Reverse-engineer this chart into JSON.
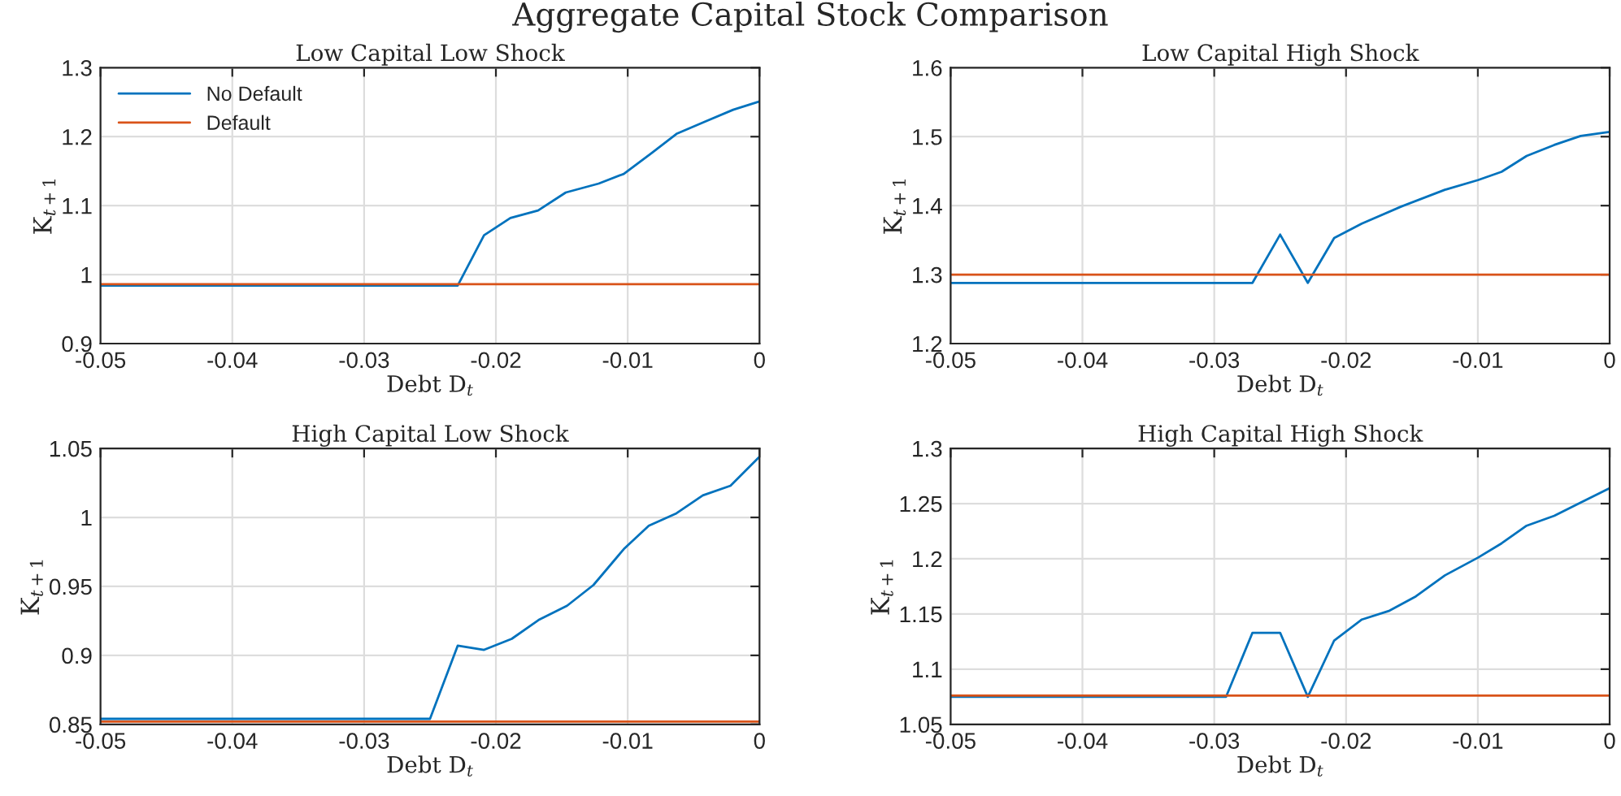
{
  "chart_data": [
    {
      "type": "line",
      "title": "Low Capital Low Shock",
      "xlabel": "Debt D$_{t}$",
      "ylabel": "K$_{t+1}$",
      "annotations": [
        "Aggregate Capital Stock Comparison"
      ],
      "xlim": [
        -0.05,
        0
      ],
      "xticks": [
        -0.05,
        -0.04,
        -0.03,
        -0.02,
        -0.01,
        0
      ],
      "ylim": [
        0.9,
        1.3
      ],
      "yticks": [
        0.9,
        1,
        1.1,
        1.2,
        1.3
      ],
      "grid": true,
      "legend": "top left",
      "series": [
        {
          "name": "No Default",
          "color": "#0072bd",
          "x": [
            -0.05,
            -0.0229,
            -0.0209,
            -0.0189,
            -0.0168,
            -0.0147,
            -0.0122,
            -0.0103,
            -0.0082,
            -0.0063,
            -0.0041,
            -0.002,
            0
          ],
          "values": [
            0.984,
            0.984,
            1.057,
            1.082,
            1.093,
            1.119,
            1.132,
            1.146,
            1.176,
            1.204,
            1.222,
            1.239,
            1.251
          ]
        },
        {
          "name": "Default",
          "color": "#d95319",
          "x": [
            -0.05,
            0
          ],
          "values": [
            0.986,
            0.986
          ]
        }
      ]
    },
    {
      "type": "line",
      "title": "Low Capital High Shock",
      "xlabel": "Debt D$_{t}$",
      "ylabel": "K$_{t+1}$",
      "xlim": [
        -0.05,
        0
      ],
      "xticks": [
        -0.05,
        -0.04,
        -0.03,
        -0.02,
        -0.01,
        0
      ],
      "ylim": [
        1.2,
        1.6
      ],
      "yticks": [
        1.2,
        1.3,
        1.4,
        1.5,
        1.6
      ],
      "grid": true,
      "series": [
        {
          "color": "#0072bd",
          "x": [
            -0.05,
            -0.0271,
            -0.025,
            -0.0229,
            -0.0209,
            -0.0188,
            -0.0159,
            -0.0125,
            -0.01,
            -0.0082,
            -0.0063,
            -0.0042,
            -0.0022,
            0
          ],
          "values": [
            1.288,
            1.288,
            1.358,
            1.288,
            1.353,
            1.374,
            1.398,
            1.423,
            1.437,
            1.449,
            1.472,
            1.488,
            1.501,
            1.507
          ]
        },
        {
          "color": "#d95319",
          "x": [
            -0.05,
            0
          ],
          "values": [
            1.3,
            1.3
          ]
        }
      ]
    },
    {
      "type": "line",
      "title": "High Capital Low Shock",
      "xlabel": "Debt D$_{t}$",
      "ylabel": "K$_{t+1}$",
      "xlim": [
        -0.05,
        0
      ],
      "xticks": [
        -0.05,
        -0.04,
        -0.03,
        -0.02,
        -0.01,
        0
      ],
      "ylim": [
        0.85,
        1.05
      ],
      "yticks": [
        0.85,
        0.9,
        0.95,
        1,
        1.05
      ],
      "grid": true,
      "series": [
        {
          "color": "#0072bd",
          "x": [
            -0.05,
            -0.025,
            -0.0229,
            -0.0209,
            -0.0188,
            -0.0167,
            -0.0146,
            -0.0126,
            -0.0103,
            -0.0084,
            -0.0063,
            -0.0043,
            -0.0022,
            0
          ],
          "values": [
            0.854,
            0.854,
            0.907,
            0.904,
            0.912,
            0.926,
            0.936,
            0.951,
            0.977,
            0.994,
            1.003,
            1.016,
            1.023,
            1.044
          ]
        },
        {
          "color": "#d95319",
          "x": [
            -0.05,
            0
          ],
          "values": [
            0.852,
            0.852
          ]
        }
      ]
    },
    {
      "type": "line",
      "title": "High Capital High Shock",
      "xlabel": "Debt D$_{t}$",
      "ylabel": "K$_{t+1}$",
      "xlim": [
        -0.05,
        0
      ],
      "xticks": [
        -0.05,
        -0.04,
        -0.03,
        -0.02,
        -0.01,
        0
      ],
      "ylim": [
        1.05,
        1.3
      ],
      "yticks": [
        1.05,
        1.1,
        1.15,
        1.2,
        1.25,
        1.3
      ],
      "grid": true,
      "series": [
        {
          "color": "#0072bd",
          "x": [
            -0.05,
            -0.0291,
            -0.0271,
            -0.025,
            -0.0229,
            -0.0209,
            -0.0188,
            -0.0167,
            -0.0147,
            -0.0125,
            -0.01,
            -0.0082,
            -0.0063,
            -0.0042,
            -0.0022,
            0
          ],
          "values": [
            1.075,
            1.075,
            1.133,
            1.133,
            1.075,
            1.126,
            1.145,
            1.153,
            1.166,
            1.185,
            1.201,
            1.214,
            1.23,
            1.239,
            1.251,
            1.264
          ]
        },
        {
          "color": "#d95319",
          "x": [
            -0.05,
            0
          ],
          "values": [
            1.076,
            1.076
          ]
        }
      ]
    }
  ]
}
